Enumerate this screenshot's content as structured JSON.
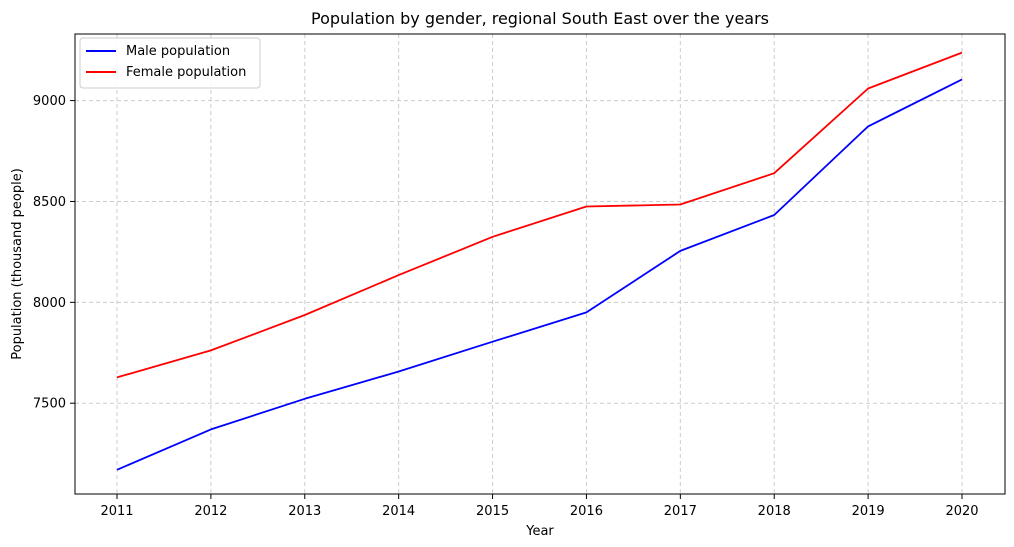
{
  "chart_data": {
    "type": "line",
    "title": "Population by gender, regional South East over the years",
    "xlabel": "Year",
    "ylabel": "Population (thousand people)",
    "x": [
      "2011",
      "2012",
      "2013",
      "2014",
      "2015",
      "2016",
      "2017",
      "2018",
      "2019",
      "2020"
    ],
    "ylim": [
      7050,
      9330
    ],
    "yticks": [
      7500,
      8000,
      8500,
      9000
    ],
    "grid": true,
    "legend_position": "top-left",
    "series": [
      {
        "name": "Male population",
        "color": "#0000ff",
        "values": [
          7170,
          7370,
          7522,
          7657,
          7805,
          7950,
          8255,
          8433,
          8872,
          9105
        ]
      },
      {
        "name": "Female population",
        "color": "#ff0000",
        "values": [
          7628,
          7762,
          7937,
          8135,
          8325,
          8475,
          8485,
          8640,
          9060,
          9238
        ]
      }
    ]
  }
}
